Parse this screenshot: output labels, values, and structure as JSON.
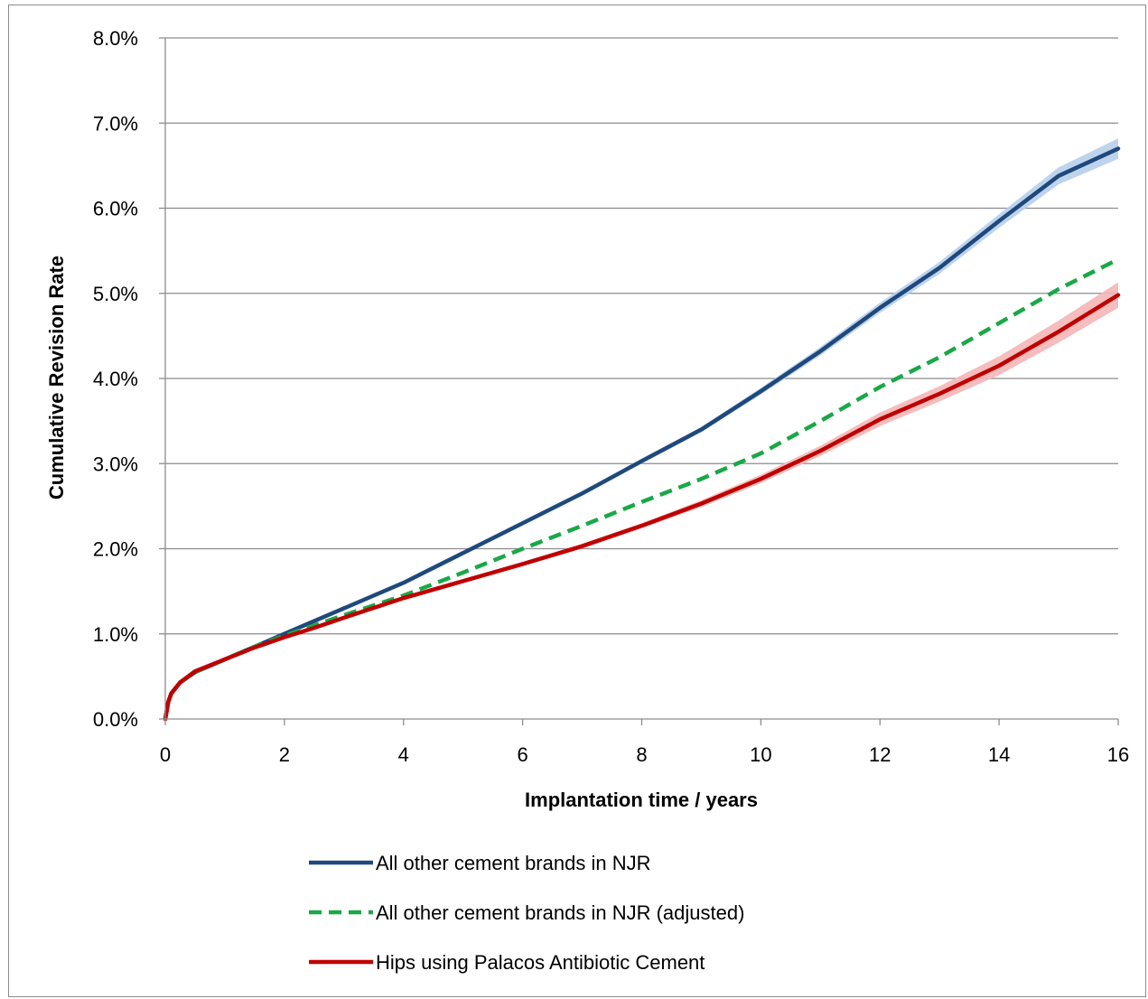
{
  "chart_data": {
    "type": "line",
    "title": "",
    "xlabel": "Implantation time  / years",
    "ylabel": "Cumulative Revision Rate",
    "xlim": [
      0,
      16
    ],
    "ylim": [
      0,
      8
    ],
    "x_ticks": [
      "0",
      "2",
      "4",
      "6",
      "8",
      "10",
      "12",
      "14",
      "16"
    ],
    "y_ticks": [
      "0.0%",
      "1.0%",
      "2.0%",
      "3.0%",
      "4.0%",
      "5.0%",
      "6.0%",
      "7.0%",
      "8.0%"
    ],
    "grid": "horizontal",
    "legend_position": "bottom",
    "x": [
      0,
      0.05,
      0.1,
      0.25,
      0.5,
      1,
      1.5,
      2,
      2.5,
      3,
      4,
      5,
      6,
      7,
      8,
      9,
      10,
      11,
      12,
      13,
      14,
      15,
      16
    ],
    "series": [
      {
        "name": "All other cement brands in NJR",
        "color": "#1f497d",
        "style": "solid",
        "band_color": "#b7cfeb",
        "values": [
          0,
          0.2,
          0.3,
          0.43,
          0.55,
          0.7,
          0.85,
          1.0,
          1.15,
          1.3,
          1.6,
          1.95,
          2.3,
          2.65,
          3.03,
          3.4,
          3.85,
          4.32,
          4.83,
          5.3,
          5.85,
          6.38,
          6.7
        ],
        "band_halfwidth": [
          0,
          0,
          0,
          0.01,
          0.01,
          0.01,
          0.01,
          0.01,
          0.01,
          0.01,
          0.01,
          0.02,
          0.02,
          0.02,
          0.03,
          0.03,
          0.04,
          0.05,
          0.06,
          0.07,
          0.08,
          0.1,
          0.12
        ]
      },
      {
        "name": "All other cement brands in NJR (adjusted)",
        "color": "#1aa847",
        "style": "dashed",
        "values": [
          0,
          0.2,
          0.3,
          0.43,
          0.55,
          0.7,
          0.85,
          0.98,
          1.1,
          1.22,
          1.45,
          1.72,
          2.0,
          2.27,
          2.55,
          2.82,
          3.12,
          3.5,
          3.9,
          4.25,
          4.65,
          5.05,
          5.4
        ]
      },
      {
        "name": "Hips using Palacos Antibiotic Cement",
        "color": "#c00000",
        "style": "solid",
        "band_color": "#f4b6b6",
        "values": [
          0,
          0.2,
          0.3,
          0.43,
          0.56,
          0.7,
          0.84,
          0.96,
          1.07,
          1.19,
          1.42,
          1.62,
          1.82,
          2.03,
          2.27,
          2.53,
          2.82,
          3.15,
          3.52,
          3.82,
          4.15,
          4.55,
          4.98
        ],
        "band_halfwidth": [
          0,
          0,
          0,
          0.01,
          0.01,
          0.01,
          0.01,
          0.01,
          0.01,
          0.01,
          0.01,
          0.02,
          0.02,
          0.03,
          0.03,
          0.04,
          0.05,
          0.06,
          0.08,
          0.09,
          0.11,
          0.13,
          0.15
        ]
      }
    ]
  }
}
